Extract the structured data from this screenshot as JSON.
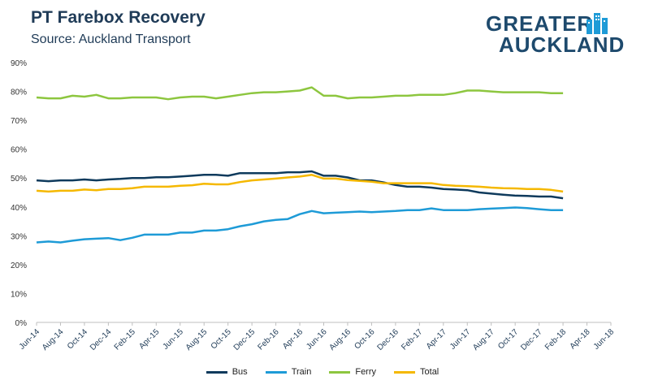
{
  "header": {
    "title": "PT Farebox Recovery",
    "subtitle": "Source: Auckland Transport"
  },
  "logo": {
    "line1": "GREATER",
    "line2": "AUCKLAND"
  },
  "chart_data": {
    "type": "line",
    "title": "PT Farebox Recovery",
    "subtitle": "Source: Auckland Transport",
    "ylim": [
      0,
      90
    ],
    "y_ticks": [
      "0%",
      "10%",
      "20%",
      "30%",
      "40%",
      "50%",
      "60%",
      "70%",
      "80%",
      "90%"
    ],
    "x_tick_labels": [
      "Jun-14",
      "Aug-14",
      "Oct-14",
      "Dec-14",
      "Feb-15",
      "Apr-15",
      "Jun-15",
      "Aug-15",
      "Oct-15",
      "Dec-15",
      "Feb-16",
      "Apr-16",
      "Jun-16",
      "Aug-16",
      "Oct-16",
      "Dec-16",
      "Feb-17",
      "Apr-17",
      "Jun-17",
      "Aug-17",
      "Oct-17",
      "Dec-17",
      "Feb-18",
      "Apr-18",
      "Jun-18"
    ],
    "x_months": [
      "Jun-14",
      "Jul-14",
      "Aug-14",
      "Sep-14",
      "Oct-14",
      "Nov-14",
      "Dec-14",
      "Jan-15",
      "Feb-15",
      "Mar-15",
      "Apr-15",
      "May-15",
      "Jun-15",
      "Jul-15",
      "Aug-15",
      "Sep-15",
      "Oct-15",
      "Nov-15",
      "Dec-15",
      "Jan-16",
      "Feb-16",
      "Mar-16",
      "Apr-16",
      "May-16",
      "Jun-16",
      "Jul-16",
      "Aug-16",
      "Sep-16",
      "Oct-16",
      "Nov-16",
      "Dec-16",
      "Jan-17",
      "Feb-17",
      "Mar-17",
      "Apr-17",
      "May-17",
      "Jun-17",
      "Jul-17",
      "Aug-17",
      "Sep-17",
      "Oct-17",
      "Nov-17",
      "Dec-17",
      "Jan-18",
      "Feb-18"
    ],
    "grid": false,
    "legend_position": "bottom",
    "series": [
      {
        "name": "Bus",
        "color": "#0e3a5c",
        "values": [
          49.2,
          48.9,
          49.2,
          49.2,
          49.5,
          49.2,
          49.5,
          49.7,
          50.0,
          50.0,
          50.3,
          50.3,
          50.5,
          50.8,
          51.1,
          51.1,
          50.8,
          51.7,
          51.7,
          51.7,
          51.7,
          52.0,
          52.0,
          52.3,
          50.8,
          50.8,
          50.2,
          49.2,
          49.2,
          48.5,
          47.6,
          47.0,
          47.0,
          46.7,
          46.2,
          46.0,
          45.8,
          45.0,
          44.6,
          44.2,
          43.9,
          43.8,
          43.6,
          43.6,
          43.0
        ]
      },
      {
        "name": "Train",
        "color": "#1e9bd7",
        "values": [
          27.7,
          28.0,
          27.7,
          28.3,
          28.8,
          29.0,
          29.2,
          28.5,
          29.3,
          30.4,
          30.4,
          30.4,
          31.1,
          31.1,
          31.8,
          31.8,
          32.3,
          33.3,
          34.0,
          35.0,
          35.5,
          35.8,
          37.5,
          38.6,
          37.8,
          38.0,
          38.2,
          38.4,
          38.2,
          38.4,
          38.6,
          38.9,
          38.9,
          39.5,
          38.9,
          38.9,
          38.9,
          39.2,
          39.4,
          39.6,
          39.8,
          39.6,
          39.2,
          38.9,
          38.9
        ]
      },
      {
        "name": "Ferry",
        "color": "#8dc63f",
        "values": [
          77.9,
          77.6,
          77.6,
          78.5,
          78.2,
          78.8,
          77.6,
          77.6,
          77.9,
          77.9,
          77.9,
          77.3,
          77.9,
          78.2,
          78.2,
          77.6,
          78.2,
          78.8,
          79.4,
          79.7,
          79.7,
          80.0,
          80.3,
          81.4,
          78.5,
          78.5,
          77.6,
          77.9,
          77.9,
          78.2,
          78.5,
          78.5,
          78.8,
          78.8,
          78.8,
          79.4,
          80.3,
          80.3,
          80.0,
          79.7,
          79.7,
          79.7,
          79.7,
          79.4,
          79.4
        ]
      },
      {
        "name": "Total",
        "color": "#f5b800",
        "values": [
          45.6,
          45.3,
          45.6,
          45.6,
          46.0,
          45.8,
          46.2,
          46.2,
          46.5,
          47.0,
          47.0,
          47.0,
          47.3,
          47.5,
          48.0,
          47.8,
          47.8,
          48.6,
          49.2,
          49.5,
          49.8,
          50.2,
          50.5,
          51.1,
          49.8,
          49.8,
          49.3,
          49.0,
          48.7,
          48.2,
          48.2,
          48.2,
          48.2,
          48.2,
          47.6,
          47.3,
          47.2,
          47.0,
          46.7,
          46.5,
          46.4,
          46.2,
          46.2,
          45.9,
          45.3
        ]
      }
    ]
  }
}
